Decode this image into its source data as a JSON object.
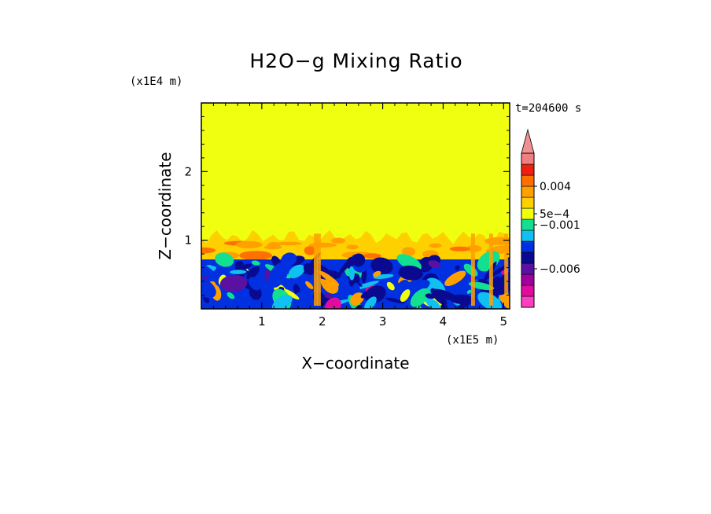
{
  "chart_data": {
    "type": "heatmap",
    "title": "H2O−g Mixing Ratio",
    "xlabel": "X−coordinate",
    "ylabel": "Z−coordinate",
    "x_scale_label": "(x1E5 m)",
    "y_scale_label": "(x1E4 m)",
    "time_label": "t=204600 s",
    "xlim": [
      0,
      5.1
    ],
    "ylim": [
      0,
      3.0
    ],
    "x_ticks": [
      {
        "value": 1,
        "label": "1"
      },
      {
        "value": 2,
        "label": "2"
      },
      {
        "value": 3,
        "label": "3"
      },
      {
        "value": 4,
        "label": "4"
      },
      {
        "value": 5,
        "label": "5"
      }
    ],
    "y_ticks": [
      {
        "value": 1,
        "label": "1"
      },
      {
        "value": 2,
        "label": "2"
      }
    ],
    "colorbar": {
      "extend": "max",
      "levels_bottom_to_top": [
        {
          "color": "#ff3fc0"
        },
        {
          "color": "#e00ca0"
        },
        {
          "color": "#a000a0"
        },
        {
          "color": "#5a10a0"
        },
        {
          "color": "#0a0a90"
        },
        {
          "color": "#0030e0"
        },
        {
          "color": "#10c0f0"
        },
        {
          "color": "#10e090"
        },
        {
          "color": "#f0ff10"
        },
        {
          "color": "#ffd000"
        },
        {
          "color": "#ffa000"
        },
        {
          "color": "#ff7000"
        },
        {
          "color": "#f02010"
        },
        {
          "color": "#f08080"
        }
      ],
      "extend_color": "#f09090",
      "labels": [
        {
          "text": "0.004",
          "boundary": 11
        },
        {
          "text": "5e−4",
          "boundary": 8.5
        },
        {
          "text": "−0.001",
          "boundary": 7.5
        },
        {
          "text": "−0.006",
          "boundary": 3.5
        }
      ]
    },
    "regions": {
      "upper_layer_top": 1.05,
      "boundary_layer_top": 0.72,
      "upper_color": "#f0ff10",
      "transition_color": "#ffd000",
      "lower_base_color": "#0030e0"
    }
  }
}
